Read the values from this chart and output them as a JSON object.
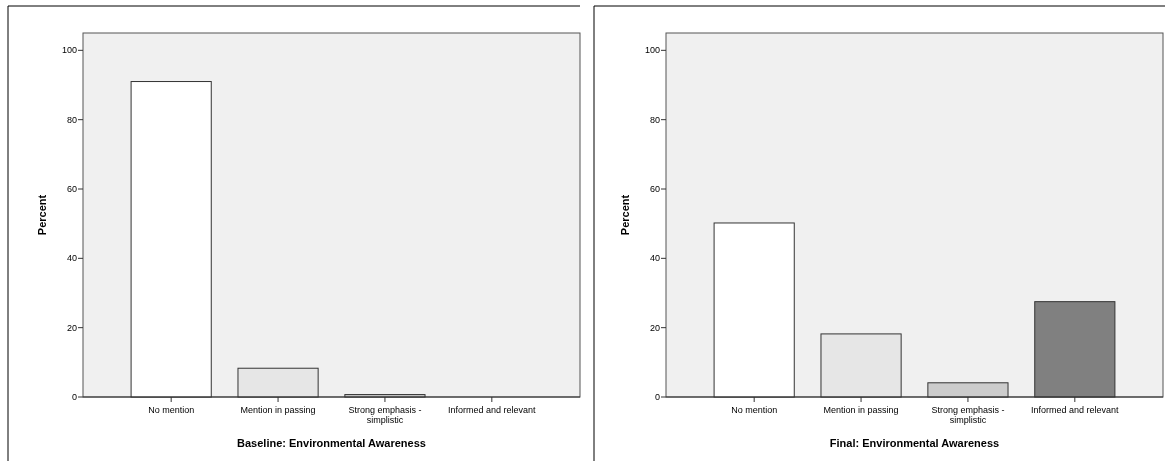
{
  "chart_data": [
    {
      "type": "bar",
      "xlabel": "Baseline: Environmental Awareness",
      "ylabel": "Percent",
      "categories": [
        "No mention",
        "Mention in passing",
        "Strong emphasis - simplistic",
        "Informed and relevant"
      ],
      "values": [
        91,
        8.3,
        0.7,
        0
      ],
      "colors": [
        "#ffffff",
        "#e6e6e6",
        "#cccccc",
        "#808080"
      ],
      "ylim": [
        0,
        105
      ],
      "yticks": [
        0,
        20,
        40,
        60,
        80,
        100
      ]
    },
    {
      "type": "bar",
      "xlabel": "Final: Environmental Awareness",
      "ylabel": "Percent",
      "categories": [
        "No mention",
        "Mention in passing",
        "Strong emphasis - simplistic",
        "Informed and relevant"
      ],
      "values": [
        50.2,
        18.2,
        4.1,
        27.5
      ],
      "colors": [
        "#ffffff",
        "#e6e6e6",
        "#cccccc",
        "#808080"
      ],
      "ylim": [
        0,
        105
      ],
      "yticks": [
        0,
        20,
        40,
        60,
        80,
        100
      ]
    }
  ]
}
